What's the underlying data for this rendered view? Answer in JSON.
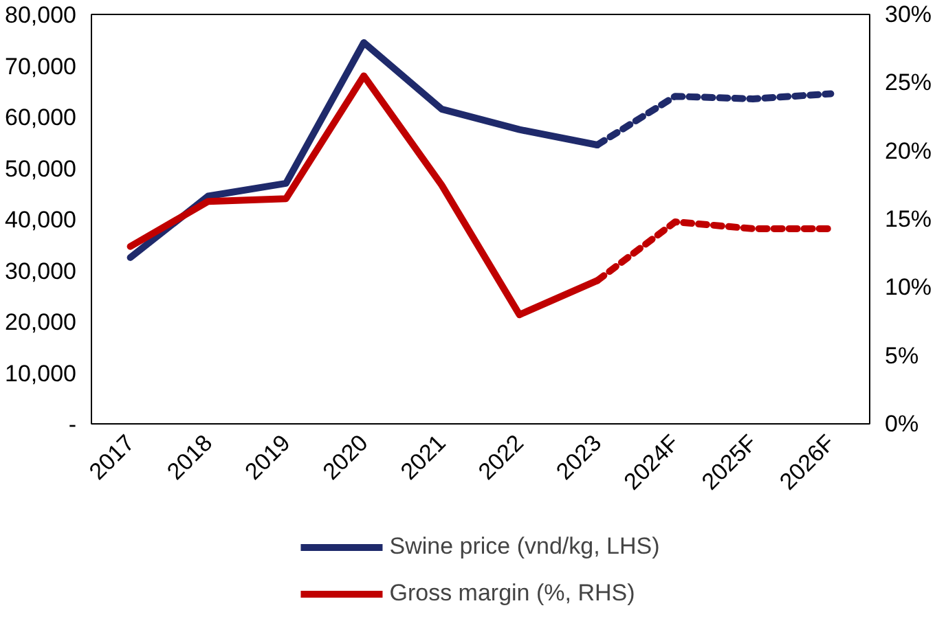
{
  "chart_data": {
    "type": "line",
    "categories": [
      "2017",
      "2018",
      "2019",
      "2020",
      "2021",
      "2022",
      "2023",
      "2024F",
      "2025F",
      "2026F"
    ],
    "series": [
      {
        "name": "Swine price (vnd/kg, LHS)",
        "color": "#1f2a6b",
        "line_style": "solid",
        "values": [
          32500,
          44500,
          47000,
          74500,
          61500,
          57500,
          54500,
          null,
          null,
          null
        ]
      },
      {
        "color": "#1f2a6b",
        "line_style": "dashed",
        "values": [
          null,
          null,
          null,
          null,
          null,
          null,
          54500,
          64000,
          63500,
          64500
        ]
      },
      {
        "name": "Gross margin (%, RHS)",
        "color": "#c00000",
        "axis": "y2",
        "line_style": "solid",
        "values": [
          13,
          16.3,
          16.5,
          25.5,
          17.5,
          8,
          10.5,
          null,
          null,
          null
        ]
      },
      {
        "color": "#c00000",
        "axis": "y2",
        "line_style": "dashed",
        "values": [
          null,
          null,
          null,
          null,
          null,
          null,
          10.5,
          14.8,
          14.3,
          14.3
        ]
      }
    ],
    "ylim": [
      0,
      80000
    ],
    "yticks": [
      {
        "value": 0,
        "label": "-"
      },
      {
        "value": 10000,
        "label": "10,000"
      },
      {
        "value": 20000,
        "label": "20,000"
      },
      {
        "value": 30000,
        "label": "30,000"
      },
      {
        "value": 40000,
        "label": "40,000"
      },
      {
        "value": 50000,
        "label": "50,000"
      },
      {
        "value": 60000,
        "label": "60,000"
      },
      {
        "value": 70000,
        "label": "70,000"
      },
      {
        "value": 80000,
        "label": "80,000"
      }
    ],
    "y2lim": [
      0,
      30
    ],
    "y2ticks": [
      {
        "value": 0,
        "label": "0%"
      },
      {
        "value": 5,
        "label": "5%"
      },
      {
        "value": 10,
        "label": "10%"
      },
      {
        "value": 15,
        "label": "15%"
      },
      {
        "value": 20,
        "label": "20%"
      },
      {
        "value": 25,
        "label": "25%"
      },
      {
        "value": 30,
        "label": "30%"
      }
    ],
    "grid": false,
    "legend": "bottom",
    "marker": "none"
  }
}
